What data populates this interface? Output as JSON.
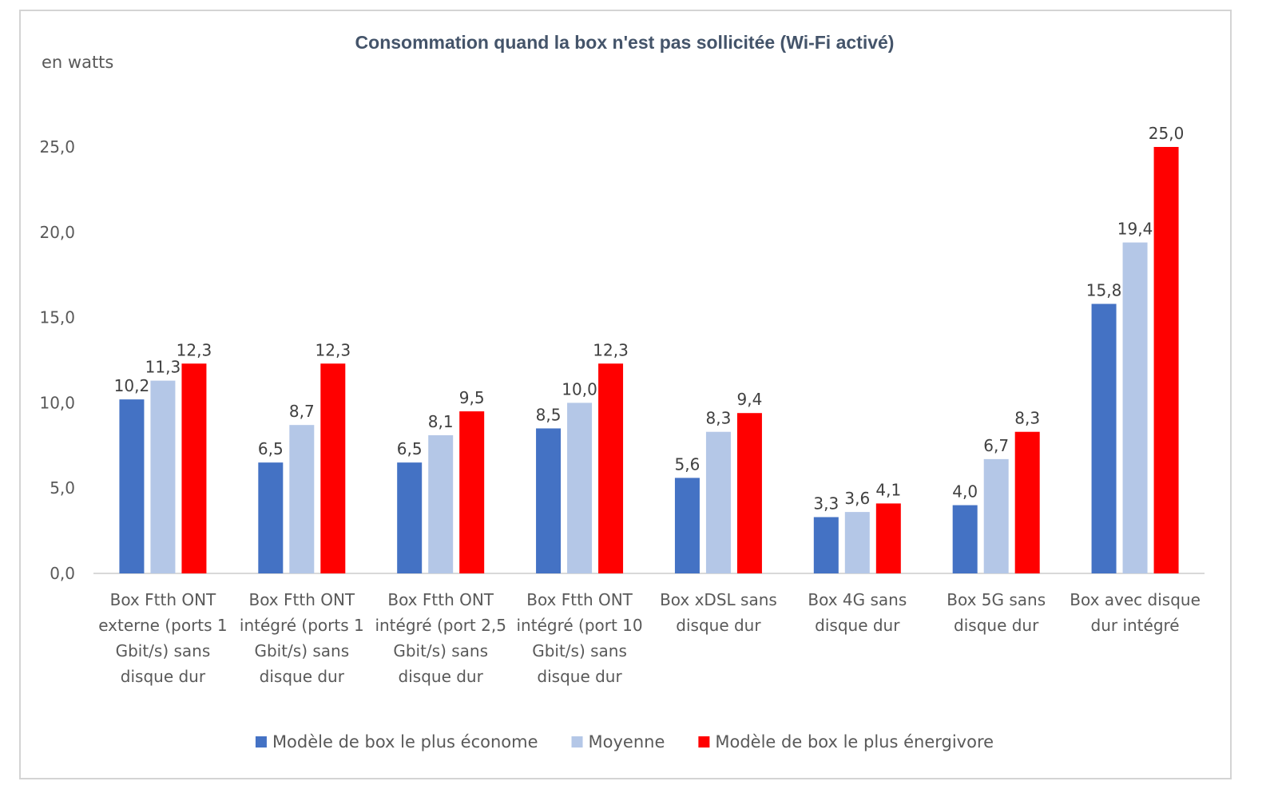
{
  "chart_data": {
    "type": "bar",
    "title": "Consommation quand la box n'est pas sollicitée (Wi-Fi activé)",
    "ylabel": "en watts",
    "ylim": [
      0,
      25
    ],
    "yticks": [
      "0,0",
      "5,0",
      "10,0",
      "15,0",
      "20,0",
      "25,0"
    ],
    "ytick_values": [
      0,
      5,
      10,
      15,
      20,
      25
    ],
    "grid": false,
    "legend_position": "bottom",
    "categories": [
      [
        "Box Ftth ONT",
        "externe (ports 1",
        "Gbit/s) sans",
        "disque dur"
      ],
      [
        "Box Ftth ONT",
        "intégré (ports 1",
        "Gbit/s) sans",
        "disque dur"
      ],
      [
        "Box Ftth ONT",
        "intégré (port 2,5",
        "Gbit/s) sans",
        "disque dur"
      ],
      [
        "Box Ftth ONT",
        "intégré (port 10",
        "Gbit/s) sans",
        "disque dur"
      ],
      [
        "Box xDSL sans",
        "disque dur"
      ],
      [
        "Box 4G sans",
        "disque dur"
      ],
      [
        "Box 5G sans",
        "disque dur"
      ],
      [
        "Box avec disque",
        "dur intégré"
      ]
    ],
    "series": [
      {
        "name": "Modèle de box le plus économe",
        "color": "#4472c4",
        "values": [
          10.2,
          6.5,
          6.5,
          8.5,
          5.6,
          3.3,
          4.0,
          15.8
        ],
        "labels": [
          "10,2",
          "6,5",
          "6,5",
          "8,5",
          "5,6",
          "3,3",
          "4,0",
          "15,8"
        ]
      },
      {
        "name": "Moyenne",
        "color": "#b4c7e7",
        "values": [
          11.3,
          8.7,
          8.1,
          10.0,
          8.3,
          3.6,
          6.7,
          19.4
        ],
        "labels": [
          "11,3",
          "8,7",
          "8,1",
          "10,0",
          "8,3",
          "3,6",
          "6,7",
          "19,4"
        ]
      },
      {
        "name": "Modèle de box le plus énergivore",
        "color": "#ff0000",
        "values": [
          12.3,
          12.3,
          9.5,
          12.3,
          9.4,
          4.1,
          8.3,
          25.0
        ],
        "labels": [
          "12,3",
          "12,3",
          "9,5",
          "12,3",
          "9,4",
          "4,1",
          "8,3",
          "25,0"
        ]
      }
    ]
  }
}
